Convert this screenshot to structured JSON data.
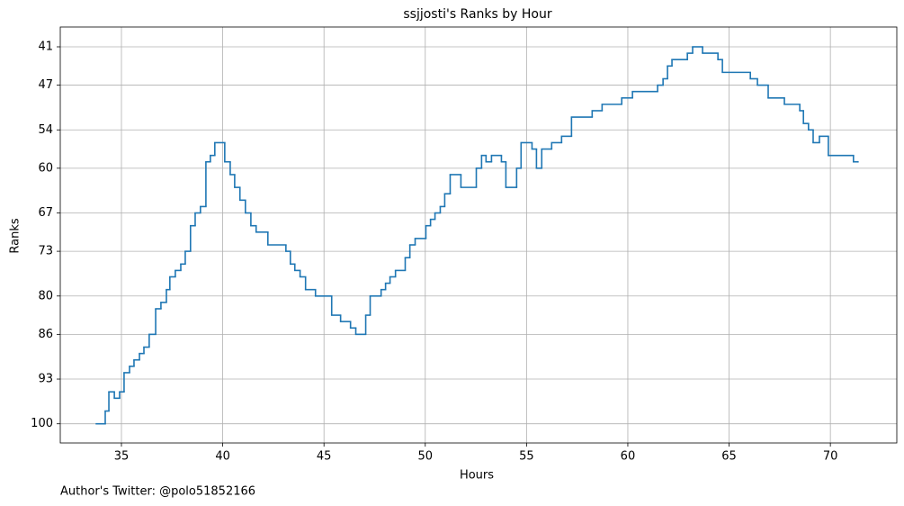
{
  "chart_data": {
    "type": "line",
    "drawstyle": "steps-post",
    "title": "ssjjosti's Ranks by Hour",
    "x_label": "Hours",
    "y_label": "Ranks",
    "footnote": "Author's Twitter: @polo51852166",
    "xlim": [
      31.98,
      73.28
    ],
    "ylim": [
      103,
      37.9
    ],
    "y_inverted": true,
    "xticks": [
      35,
      40,
      45,
      50,
      55,
      60,
      65,
      70
    ],
    "yticks": [
      41,
      47,
      54,
      60,
      67,
      73,
      80,
      86,
      93,
      100
    ],
    "grid": true,
    "series": [
      {
        "name": "Rank",
        "color": "#1f77b4",
        "x": [
          33.76,
          34.2,
          34.38,
          34.65,
          34.91,
          35.13,
          35.4,
          35.62,
          35.89,
          36.11,
          36.37,
          36.69,
          36.95,
          37.22,
          37.39,
          37.66,
          37.93,
          38.15,
          38.41,
          38.64,
          38.9,
          39.17,
          39.39,
          39.61,
          40.1,
          40.37,
          40.59,
          40.85,
          41.12,
          41.39,
          41.65,
          42.23,
          43.12,
          43.34,
          43.56,
          43.82,
          44.09,
          44.58,
          45.38,
          45.82,
          46.31,
          46.57,
          47.06,
          47.28,
          47.82,
          48.04,
          48.26,
          48.53,
          49.01,
          49.24,
          49.5,
          50.03,
          50.26,
          50.48,
          50.74,
          50.96,
          51.23,
          51.76,
          52.52,
          52.78,
          53.0,
          53.27,
          53.76,
          53.98,
          54.51,
          54.73,
          55.27,
          55.49,
          55.75,
          56.24,
          56.73,
          57.22,
          58.24,
          58.73,
          59.7,
          60.23,
          61.47,
          61.74,
          61.96,
          62.18,
          62.94,
          63.2,
          63.69,
          64.45,
          64.67,
          66.05,
          66.4,
          66.93,
          67.73,
          68.49,
          68.67,
          68.92,
          69.15,
          69.46,
          69.9,
          71.14,
          71.36
        ],
        "values": [
          100,
          98,
          95,
          96,
          95,
          92,
          91,
          90,
          89,
          88,
          86,
          82,
          81,
          79,
          77,
          76,
          75,
          73,
          69,
          67,
          66,
          59,
          58,
          56,
          59,
          61,
          63,
          65,
          67,
          69,
          70,
          72,
          73,
          75,
          76,
          77,
          79,
          80,
          83,
          84,
          85,
          86,
          83,
          80,
          79,
          78,
          77,
          76,
          74,
          72,
          71,
          69,
          68,
          67,
          66,
          64,
          61,
          63,
          60,
          58,
          59,
          58,
          59,
          63,
          60,
          56,
          57,
          60,
          57,
          56,
          55,
          52,
          51,
          50,
          49,
          48,
          47,
          46,
          44,
          43,
          42,
          41,
          42,
          43,
          45,
          46,
          47,
          49,
          50,
          51,
          53,
          54,
          56,
          55,
          58,
          59,
          59
        ]
      }
    ]
  }
}
